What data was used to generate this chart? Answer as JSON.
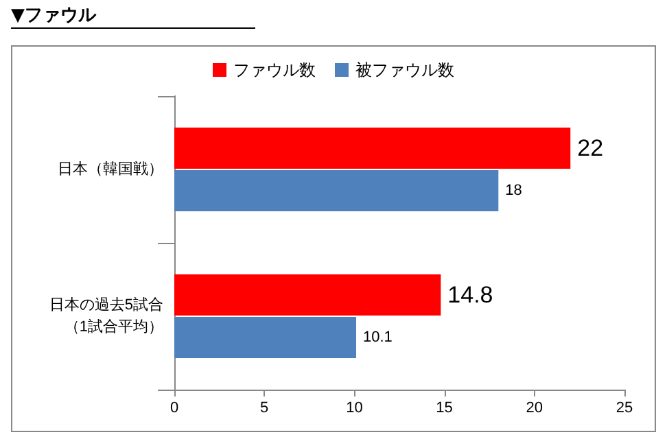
{
  "chart_data": {
    "type": "bar",
    "orientation": "horizontal",
    "title": "▼ファウル",
    "categories": [
      "日本（韓国戦）",
      "日本の過去5試合（1試合平均）"
    ],
    "series": [
      {
        "name": "ファウル数",
        "color": "#ff0000",
        "values": [
          22,
          14.8
        ]
      },
      {
        "name": "被ファウル数",
        "color": "#4f81bd",
        "values": [
          18,
          10.1
        ]
      }
    ],
    "xlim": [
      0,
      25
    ],
    "xticks": [
      0,
      5,
      10,
      15,
      20,
      25
    ],
    "grid": false,
    "legend": "top",
    "data_labels": true
  }
}
